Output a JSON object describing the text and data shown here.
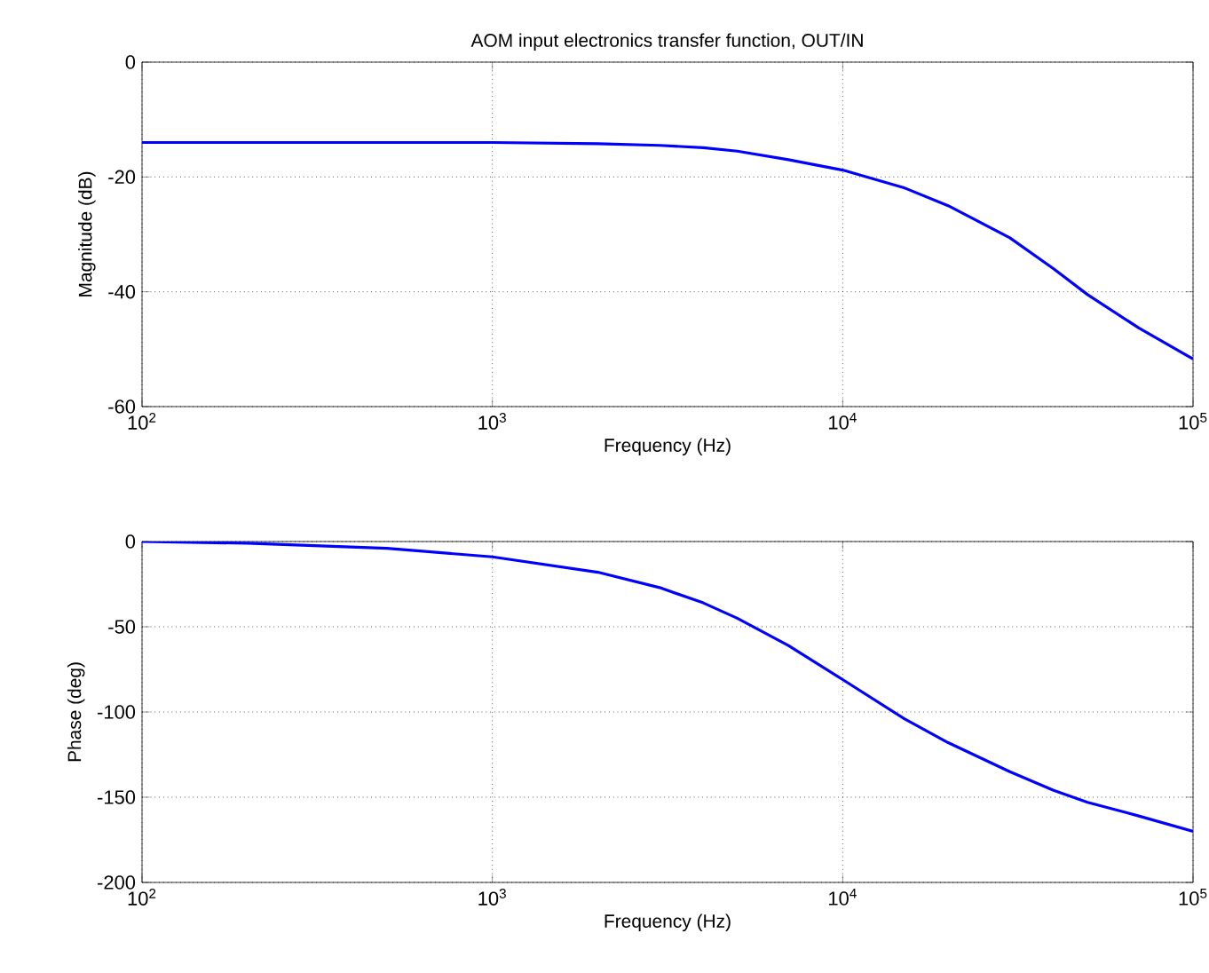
{
  "chart_data": [
    {
      "type": "line",
      "title": "AOM input electronics transfer function, OUT/IN",
      "xlabel": "Frequency (Hz)",
      "ylabel": "Magnitude (dB)",
      "log": "x",
      "grid": true,
      "x": [
        100,
        200,
        500,
        1000,
        2000,
        3000,
        4000,
        5000,
        7000,
        10000,
        15000,
        20000,
        30000,
        40000,
        50000,
        70000,
        100000
      ],
      "series": [
        {
          "color": "#0000ff",
          "values": [
            -14.0,
            -14.0,
            -14.0,
            -14.0,
            -14.2,
            -14.5,
            -14.9,
            -15.5,
            -17.0,
            -18.8,
            -21.9,
            -25.0,
            -30.6,
            -36.0,
            -40.5,
            -46.3,
            -51.7
          ]
        }
      ],
      "xlim": [
        100,
        100000
      ],
      "xticks": [
        {
          "value": 100,
          "label": "10$^{2}$"
        },
        {
          "value": 1000,
          "label": "10$^{3}$"
        },
        {
          "value": 10000,
          "label": "10$^{4}$"
        },
        {
          "value": 100000,
          "label": "10$^{5}$"
        }
      ],
      "ylim": [
        -60,
        0
      ],
      "yticks": [
        -60,
        -40,
        -20,
        0
      ]
    },
    {
      "type": "line",
      "xlabel": "Frequency (Hz)",
      "ylabel": "Phase (deg)",
      "log": "x",
      "grid": true,
      "x": [
        100,
        200,
        500,
        1000,
        2000,
        3000,
        4000,
        5000,
        7000,
        10000,
        15000,
        20000,
        30000,
        40000,
        50000,
        70000,
        100000
      ],
      "series": [
        {
          "color": "#0000ff",
          "values": [
            0,
            -1,
            -4,
            -9,
            -18,
            -27,
            -36,
            -45,
            -61,
            -81,
            -104,
            -118,
            -135,
            -146,
            -153,
            -161,
            -170
          ]
        }
      ],
      "xlim": [
        100,
        100000
      ],
      "xticks": [
        {
          "value": 100,
          "label": "10$^{2}$"
        },
        {
          "value": 1000,
          "label": "10$^{3}$"
        },
        {
          "value": 10000,
          "label": "10$^{4}$"
        },
        {
          "value": 100000,
          "label": "10$^{5}$"
        }
      ],
      "ylim": [
        -200,
        0
      ],
      "yticks": [
        -200,
        -150,
        -100,
        -50,
        0
      ]
    }
  ]
}
